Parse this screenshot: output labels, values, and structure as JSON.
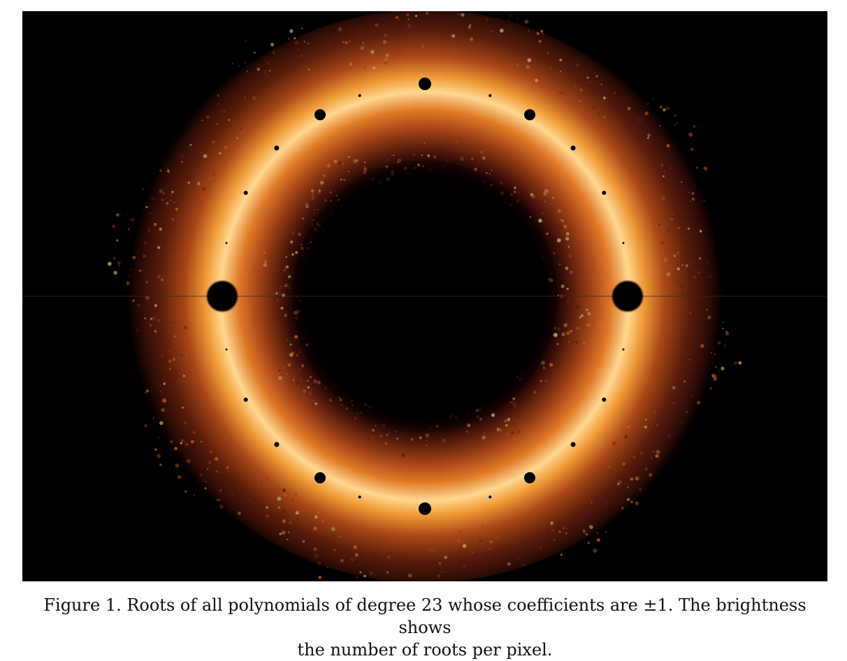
{
  "figure": {
    "caption_line1": "Figure 1. Roots of all polynomials of degree 23 whose coefficients are ±1. The brightness shows",
    "caption_line2": "the number of roots per pixel.",
    "polynomial_degree": 23,
    "coefficients": "±1",
    "background_color": "#000000",
    "ring_colors": {
      "core": "#ffd98a",
      "bright": "#f5a23c",
      "mid": "#c05a1c",
      "outer": "#5e1f0c",
      "fringe": "#8e3a17",
      "fractal_tips": "#b8a45a"
    }
  }
}
